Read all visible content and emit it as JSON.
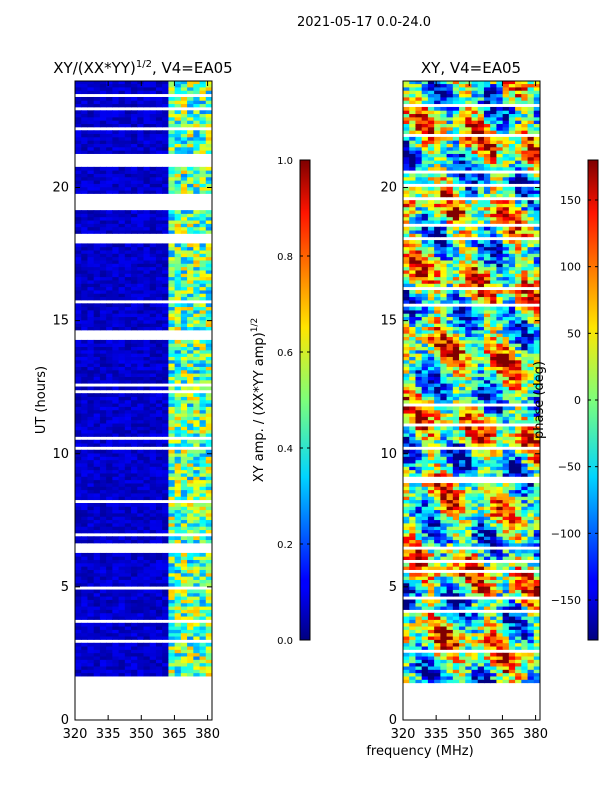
{
  "figure": {
    "suptitle": "2021-05-17 0.0-24.0",
    "xlabel_shared": "frequency (MHz)"
  },
  "chart_data": [
    {
      "type": "heatmap",
      "title": "XY/(XX*YY)^1/2, V4=EA05",
      "title_main": "XY/(XX*YY)",
      "title_sup": "1/2",
      "title_rest": ", V4=EA05",
      "xlabel": "",
      "ylabel": "UT (hours)",
      "xlim": [
        320,
        382
      ],
      "ylim": [
        0,
        24
      ],
      "xticks": [
        320,
        335,
        350,
        365,
        380
      ],
      "yticks": [
        0,
        5,
        10,
        15,
        20
      ],
      "data_extent": {
        "x": [
          320,
          382
        ],
        "y": [
          1.4,
          24
        ]
      },
      "gap_rows_hours": [
        [
          21.2,
          20.7
        ],
        [
          19.7,
          19.1
        ],
        [
          18.2,
          17.9
        ],
        [
          14.5,
          14.2
        ],
        [
          6.6,
          6.3
        ],
        [
          2.9,
          2.8
        ],
        [
          1.6,
          1.4
        ]
      ],
      "bright_channel_band_mhz": [
        360,
        380
      ],
      "colorbar": {
        "label": "XY amp. / (XX*YY amp)^1/2",
        "label_main": "XY amp. / (XX*YY amp)",
        "label_sup": "1/2",
        "range": [
          0.0,
          1.0
        ],
        "ticks": [
          "0.0",
          "0.2",
          "0.4",
          "0.6",
          "0.8",
          "1.0"
        ],
        "tick_values": [
          0.0,
          0.2,
          0.4,
          0.6,
          0.8,
          1.0
        ],
        "colormap": "jet"
      }
    },
    {
      "type": "heatmap",
      "title": "XY, V4=EA05",
      "xlabel": "frequency (MHz)",
      "ylabel": "",
      "xlim": [
        320,
        382
      ],
      "ylim": [
        0,
        24
      ],
      "xticks": [
        320,
        335,
        350,
        365,
        380
      ],
      "yticks": [
        0,
        5,
        10,
        15,
        20
      ],
      "data_extent": {
        "x": [
          320,
          382
        ],
        "y": [
          1.4,
          24
        ]
      },
      "colorbar": {
        "label": "phase (deg)",
        "range": [
          -180,
          180
        ],
        "ticks": [
          "150",
          "100",
          "50",
          "0",
          "−50",
          "−100",
          "−150"
        ],
        "tick_values": [
          150,
          100,
          50,
          0,
          -50,
          -100,
          -150
        ],
        "colormap": "jet"
      }
    }
  ]
}
